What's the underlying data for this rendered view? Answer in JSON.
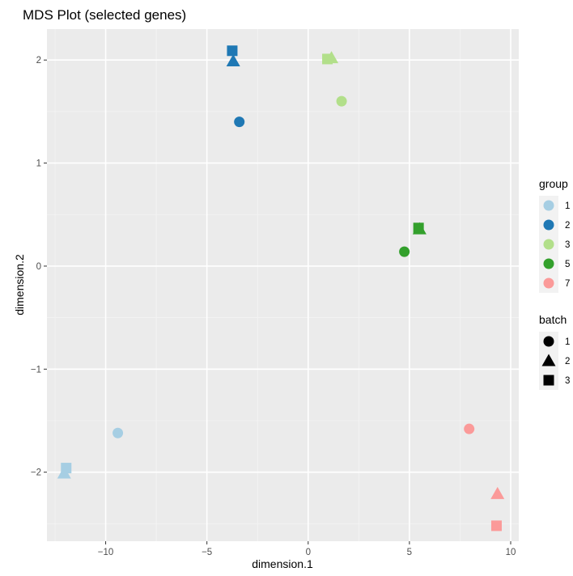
{
  "chart_data": {
    "type": "scatter",
    "title": "MDS Plot (selected genes)",
    "xlabel": "dimension.1",
    "ylabel": "dimension.2",
    "xlim": [
      -12.9,
      10.4
    ],
    "ylim": [
      -2.67,
      2.3
    ],
    "xticks": [
      -10,
      -5,
      0,
      5,
      10
    ],
    "xtick_labels": [
      "−10",
      "−5",
      "0",
      "5",
      "10"
    ],
    "yticks": [
      -2,
      -1,
      0,
      1,
      2
    ],
    "ytick_labels": [
      "−2",
      "−1",
      "0",
      "1",
      "2"
    ],
    "grid": true,
    "legend_position": "right",
    "legends": [
      {
        "title": "group",
        "key": "group",
        "entries": [
          {
            "label": "1",
            "color": "#a6cee3"
          },
          {
            "label": "2",
            "color": "#1f78b4"
          },
          {
            "label": "3",
            "color": "#b2df8a"
          },
          {
            "label": "5",
            "color": "#33a02c"
          },
          {
            "label": "7",
            "color": "#fb9a99"
          }
        ]
      },
      {
        "title": "batch",
        "key": "batch",
        "entries": [
          {
            "label": "1",
            "shape": "circle"
          },
          {
            "label": "2",
            "shape": "triangle"
          },
          {
            "label": "3",
            "shape": "square"
          }
        ]
      }
    ],
    "points": [
      {
        "x": -9.4,
        "y": -1.62,
        "group": "1",
        "batch": "1"
      },
      {
        "x": -12.05,
        "y": -2.01,
        "group": "1",
        "batch": "2"
      },
      {
        "x": -11.95,
        "y": -1.96,
        "group": "1",
        "batch": "3"
      },
      {
        "x": -3.4,
        "y": 1.4,
        "group": "2",
        "batch": "1"
      },
      {
        "x": -3.7,
        "y": 1.99,
        "group": "2",
        "batch": "2"
      },
      {
        "x": -3.75,
        "y": 2.09,
        "group": "2",
        "batch": "3"
      },
      {
        "x": 1.65,
        "y": 1.6,
        "group": "3",
        "batch": "1"
      },
      {
        "x": 1.15,
        "y": 2.02,
        "group": "3",
        "batch": "2"
      },
      {
        "x": 0.95,
        "y": 2.01,
        "group": "3",
        "batch": "3"
      },
      {
        "x": 4.75,
        "y": 0.14,
        "group": "5",
        "batch": "1"
      },
      {
        "x": 5.5,
        "y": 0.36,
        "group": "5",
        "batch": "2"
      },
      {
        "x": 5.45,
        "y": 0.37,
        "group": "5",
        "batch": "3"
      },
      {
        "x": 7.95,
        "y": -1.58,
        "group": "7",
        "batch": "1"
      },
      {
        "x": 9.35,
        "y": -2.21,
        "group": "7",
        "batch": "2"
      },
      {
        "x": 9.3,
        "y": -2.52,
        "group": "7",
        "batch": "3"
      }
    ]
  }
}
